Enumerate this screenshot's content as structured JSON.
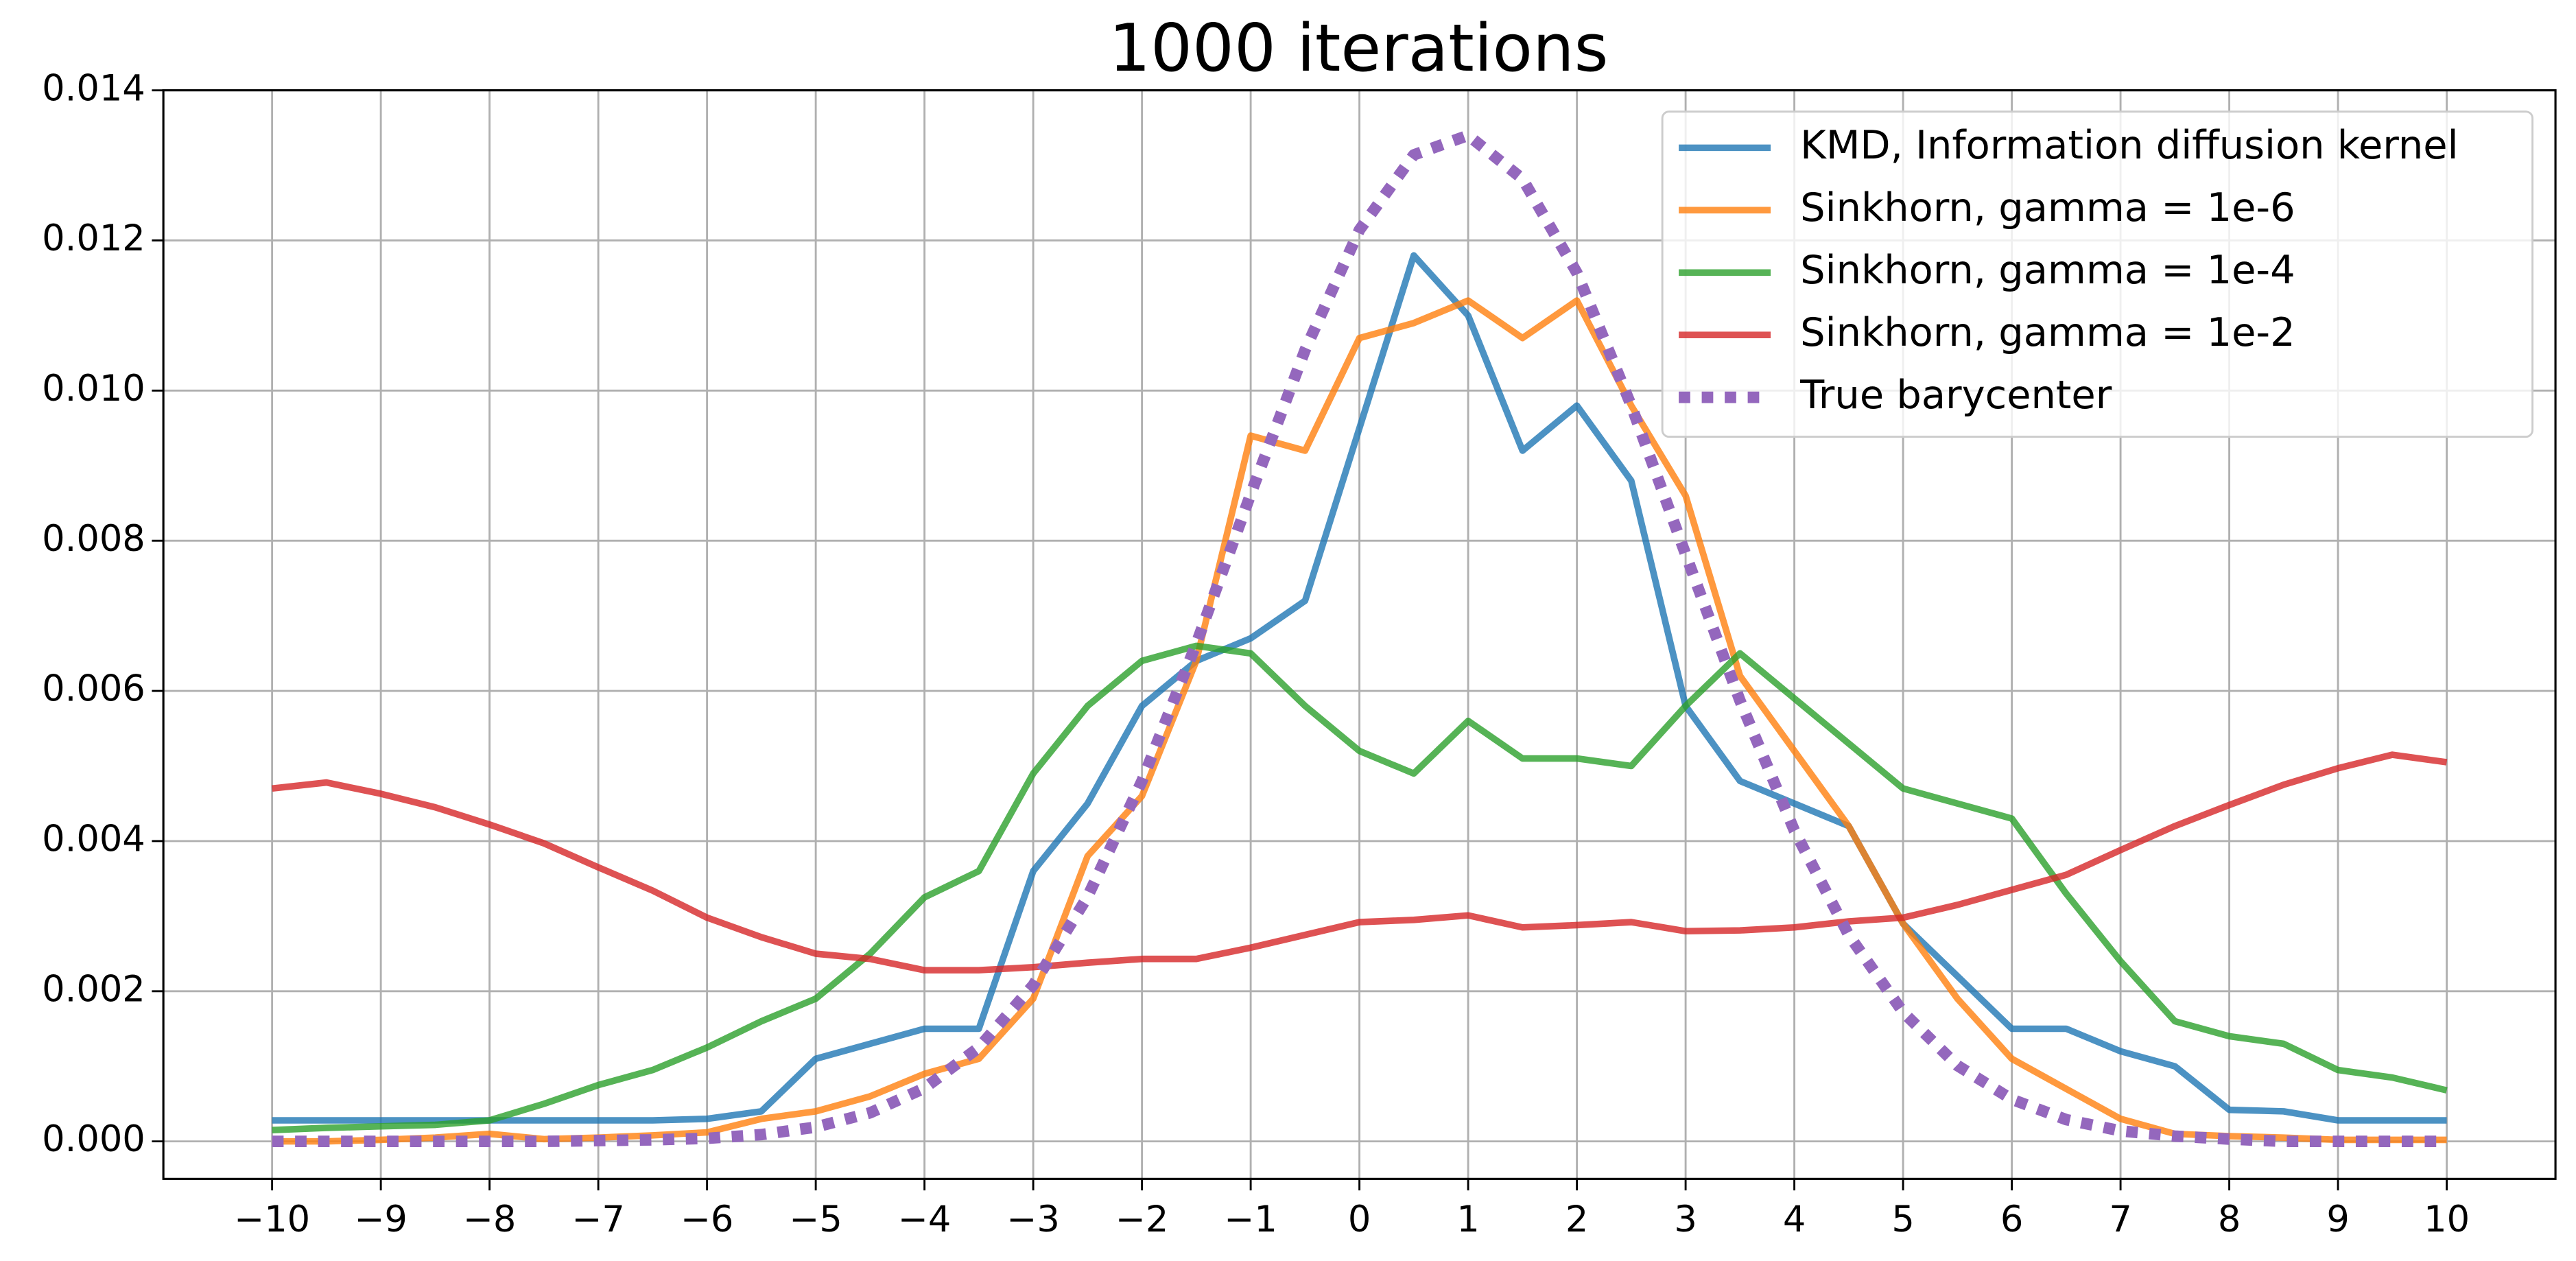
{
  "chart_data": {
    "type": "line",
    "title": "1000 iterations",
    "x": [
      -10,
      -9.5,
      -9,
      -8.5,
      -8,
      -7.5,
      -7,
      -6.5,
      -6,
      -5.5,
      -5,
      -4.5,
      -4,
      -3.5,
      -3,
      -2.5,
      -2,
      -1.5,
      -1,
      -0.5,
      0,
      0.5,
      1,
      1.5,
      2,
      2.5,
      3,
      3.5,
      4,
      4.5,
      5,
      5.5,
      6,
      6.5,
      7,
      7.5,
      8,
      8.5,
      9,
      9.5,
      10
    ],
    "series": [
      {
        "name": "KMD, Information diffusion kernel",
        "color": "#1f77b4",
        "dash": "solid",
        "values": [
          0.00028,
          0.00028,
          0.00028,
          0.00028,
          0.00028,
          0.00028,
          0.00028,
          0.00028,
          0.0003,
          0.0004,
          0.0011,
          0.0013,
          0.0015,
          0.0015,
          0.0036,
          0.0045,
          0.0058,
          0.0064,
          0.0067,
          0.0072,
          0.0095,
          0.0118,
          0.011,
          0.0092,
          0.0098,
          0.0088,
          0.0058,
          0.0048,
          0.0045,
          0.0042,
          0.0029,
          0.0022,
          0.0015,
          0.0015,
          0.0012,
          0.001,
          0.00042,
          0.0004,
          0.00028,
          0.00028,
          0.00028
        ]
      },
      {
        "name": "Sinkhorn, gamma = 1e-6",
        "color": "#ff7f0e",
        "dash": "solid",
        "values": [
          0,
          0,
          2e-05,
          5e-05,
          0.0001,
          3e-05,
          5e-05,
          8e-05,
          0.00012,
          0.0003,
          0.0004,
          0.0006,
          0.0009,
          0.0011,
          0.0019,
          0.0038,
          0.0046,
          0.0064,
          0.0094,
          0.0092,
          0.0107,
          0.0109,
          0.0112,
          0.0107,
          0.0112,
          0.0098,
          0.0086,
          0.0062,
          0.0052,
          0.0042,
          0.0029,
          0.0019,
          0.0011,
          0.0007,
          0.0003,
          0.0001,
          7e-05,
          5e-05,
          2e-05,
          2e-05,
          2e-05
        ]
      },
      {
        "name": "Sinkhorn, gamma = 1e-4",
        "color": "#2ca02c",
        "dash": "solid",
        "values": [
          0.00015,
          0.00018,
          0.0002,
          0.00022,
          0.00028,
          0.0005,
          0.00075,
          0.00095,
          0.00125,
          0.0016,
          0.0019,
          0.0025,
          0.00325,
          0.0036,
          0.0049,
          0.0058,
          0.0064,
          0.0066,
          0.0065,
          0.0058,
          0.0052,
          0.0049,
          0.0056,
          0.0051,
          0.0051,
          0.005,
          0.0058,
          0.0065,
          0.0059,
          0.0053,
          0.0047,
          0.0045,
          0.0043,
          0.0033,
          0.0024,
          0.0016,
          0.0014,
          0.0013,
          0.00095,
          0.00085,
          0.00068
        ]
      },
      {
        "name": "Sinkhorn, gamma = 1e-2",
        "color": "#d62728",
        "dash": "solid",
        "values": [
          0.0047,
          0.00478,
          0.00463,
          0.00445,
          0.00422,
          0.00397,
          0.00365,
          0.00334,
          0.00298,
          0.00272,
          0.0025,
          0.00243,
          0.00228,
          0.00228,
          0.00232,
          0.00238,
          0.00243,
          0.00243,
          0.00258,
          0.00275,
          0.00292,
          0.00295,
          0.00301,
          0.00285,
          0.00288,
          0.00292,
          0.0028,
          0.00281,
          0.00285,
          0.00293,
          0.00298,
          0.00315,
          0.00335,
          0.00355,
          0.00388,
          0.0042,
          0.00448,
          0.00475,
          0.00497,
          0.00515,
          0.00505
        ]
      },
      {
        "name": "True barycenter",
        "color": "#9467bd",
        "dash": "dotted",
        "values": [
          0,
          0,
          0,
          0,
          0,
          0,
          1e-05,
          2e-05,
          4e-05,
          9e-05,
          0.00019,
          0.00038,
          0.00071,
          0.00125,
          0.00208,
          0.00326,
          0.0048,
          0.00663,
          0.00862,
          0.01054,
          0.01214,
          0.01314,
          0.0134,
          0.01282,
          0.01157,
          0.0098,
          0.00782,
          0.00587,
          0.00414,
          0.00275,
          0.00172,
          0.00101,
          0.00056,
          0.00029,
          0.00014,
          7e-05,
          3e-05,
          0,
          0,
          0,
          0
        ]
      }
    ],
    "xlim": [
      -11,
      11
    ],
    "ylim": [
      -0.0005,
      0.014
    ],
    "xticks": [
      {
        "value": -10,
        "label": "−10"
      },
      {
        "value": -9,
        "label": "−9"
      },
      {
        "value": -8,
        "label": "−8"
      },
      {
        "value": -7,
        "label": "−7"
      },
      {
        "value": -6,
        "label": "−6"
      },
      {
        "value": -5,
        "label": "−5"
      },
      {
        "value": -4,
        "label": "−4"
      },
      {
        "value": -3,
        "label": "−3"
      },
      {
        "value": -2,
        "label": "−2"
      },
      {
        "value": -1,
        "label": "−1"
      },
      0,
      1,
      2,
      3,
      4,
      5,
      6,
      7,
      8,
      9,
      10
    ],
    "yticks": [
      {
        "value": 0,
        "label": "0.000"
      },
      {
        "value": 0.002,
        "label": "0.002"
      },
      {
        "value": 0.004,
        "label": "0.004"
      },
      {
        "value": 0.006,
        "label": "0.006"
      },
      {
        "value": 0.008,
        "label": "0.008"
      },
      {
        "value": 0.01,
        "label": "0.010"
      },
      {
        "value": 0.012,
        "label": "0.012"
      },
      {
        "value": 0.014,
        "label": "0.014"
      }
    ],
    "grid": true,
    "legend": "upper-right"
  }
}
